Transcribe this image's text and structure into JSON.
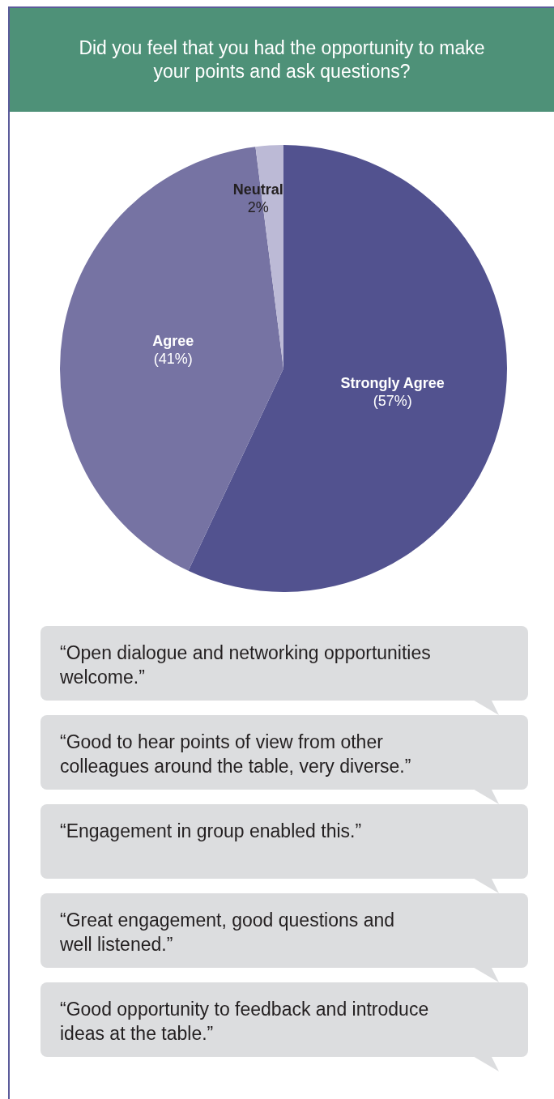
{
  "chart_data": {
    "type": "pie",
    "title": "Did you feel that you had the opportunity to make your points and ask questions?",
    "categories": [
      "Strongly Agree",
      "Agree",
      "Neutral"
    ],
    "values": [
      57,
      41,
      2
    ],
    "value_labels": [
      "(57%)",
      "(41%)",
      "2%"
    ],
    "colors": [
      "#52528f",
      "#7673a3",
      "#bcbad6"
    ],
    "legend": false,
    "annotations": [
      "“Open dialogue and networking opportunities welcome.”",
      "“Good to hear points of view from other colleagues around the table, very diverse.”",
      "“Engagement in group enabled this.”",
      "“Great engagement, good questions and well listened.”",
      "“Good opportunity to feedback and introduce ideas at the table.”"
    ]
  }
}
